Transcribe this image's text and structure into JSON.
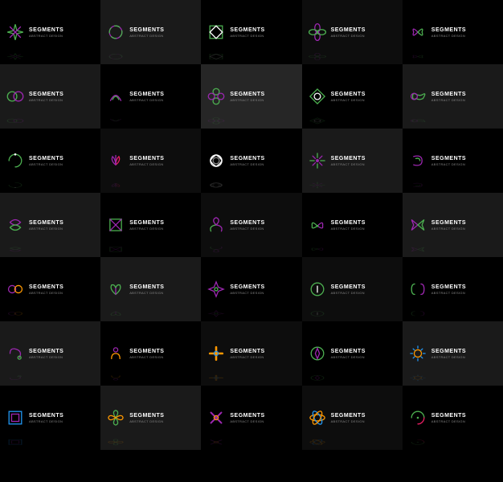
{
  "label": "SEGMENTS",
  "sublabel": "ABSTRACT DESIGN",
  "palette": {
    "green": "#4caf50",
    "purple": "#9c27b0",
    "magenta": "#e91e63",
    "orange": "#ff9800",
    "blue": "#2196f3",
    "white": "#ffffff",
    "gray": "#888888"
  },
  "bgShades": [
    "#000000",
    "#1a1a1a",
    "#0d0d0d",
    "#262626",
    "#141414"
  ],
  "cells": [
    {
      "bg": 0,
      "c1": "green",
      "c2": "purple",
      "shape": "star8"
    },
    {
      "bg": 1,
      "c1": "purple",
      "c2": "green",
      "shape": "ring"
    },
    {
      "bg": 0,
      "c1": "green",
      "c2": "white",
      "shape": "square4"
    },
    {
      "bg": 2,
      "c1": "purple",
      "c2": "green",
      "shape": "petal4"
    },
    {
      "bg": 0,
      "c1": "purple",
      "c2": "green",
      "shape": "butterfly"
    },
    {
      "bg": 1,
      "c1": "green",
      "c2": "purple",
      "shape": "loops"
    },
    {
      "bg": 0,
      "c1": "purple",
      "c2": "green",
      "shape": "wing"
    },
    {
      "bg": 3,
      "c1": "green",
      "c2": "purple",
      "shape": "flower4"
    },
    {
      "bg": 0,
      "c1": "green",
      "c2": "white",
      "shape": "diamond"
    },
    {
      "bg": 1,
      "c1": "green",
      "c2": "purple",
      "shape": "infinity"
    },
    {
      "bg": 0,
      "c1": "green",
      "c2": "white",
      "shape": "arc"
    },
    {
      "bg": 2,
      "c1": "purple",
      "c2": "magenta",
      "shape": "lotus"
    },
    {
      "bg": 0,
      "c1": "white",
      "c2": "gray",
      "shape": "rose"
    },
    {
      "bg": 1,
      "c1": "purple",
      "c2": "green",
      "shape": "burst"
    },
    {
      "bg": 0,
      "c1": "purple",
      "c2": "green",
      "shape": "swirl"
    },
    {
      "bg": 1,
      "c1": "purple",
      "c2": "green",
      "shape": "knot"
    },
    {
      "bg": 0,
      "c1": "green",
      "c2": "purple",
      "shape": "boxcross"
    },
    {
      "bg": 2,
      "c1": "purple",
      "c2": "green",
      "shape": "leaf3"
    },
    {
      "bg": 0,
      "c1": "green",
      "c2": "purple",
      "shape": "moth"
    },
    {
      "bg": 1,
      "c1": "purple",
      "c2": "green",
      "shape": "bfly2"
    },
    {
      "bg": 0,
      "c1": "purple",
      "c2": "orange",
      "shape": "link"
    },
    {
      "bg": 1,
      "c1": "green",
      "c2": "purple",
      "shape": "heart"
    },
    {
      "bg": 0,
      "c1": "purple",
      "c2": "green",
      "shape": "cross4"
    },
    {
      "bg": 2,
      "c1": "green",
      "c2": "white",
      "shape": "circle"
    },
    {
      "bg": 0,
      "c1": "green",
      "c2": "purple",
      "shape": "brackets"
    },
    {
      "bg": 1,
      "c1": "purple",
      "c2": "green",
      "shape": "swirl2"
    },
    {
      "bg": 0,
      "c1": "purple",
      "c2": "orange",
      "shape": "person"
    },
    {
      "bg": 2,
      "c1": "orange",
      "c2": "blue",
      "shape": "plus"
    },
    {
      "bg": 0,
      "c1": "green",
      "c2": "purple",
      "shape": "compass"
    },
    {
      "bg": 1,
      "c1": "orange",
      "c2": "blue",
      "shape": "sun"
    },
    {
      "bg": 0,
      "c1": "blue",
      "c2": "purple",
      "shape": "frame"
    },
    {
      "bg": 1,
      "c1": "green",
      "c2": "orange",
      "shape": "petal4b"
    },
    {
      "bg": 0,
      "c1": "purple",
      "c2": "orange",
      "shape": "xcross"
    },
    {
      "bg": 2,
      "c1": "orange",
      "c2": "blue",
      "shape": "atom"
    },
    {
      "bg": 0,
      "c1": "green",
      "c2": "magenta",
      "shape": "gauge"
    }
  ]
}
